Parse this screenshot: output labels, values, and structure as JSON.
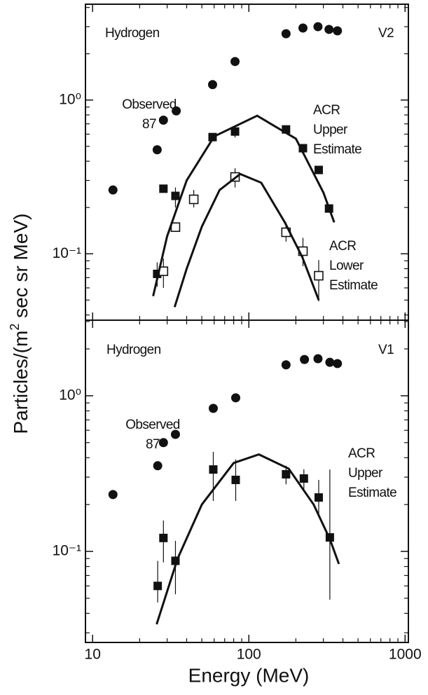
{
  "chart_data": [
    {
      "type": "scatter",
      "ylabel": [
        "Particles/(m",
        "2",
        " sec sr MeV)"
      ],
      "xscale": "log",
      "yscale": "log",
      "xlim": [
        9,
        1050
      ],
      "ylim": [
        0.037,
        4.2
      ],
      "xticks": [
        10,
        100,
        1000
      ],
      "xticks_minor": [
        20,
        30,
        40,
        50,
        60,
        70,
        80,
        90,
        200,
        300,
        400,
        500,
        600,
        700,
        800,
        900
      ],
      "yticks": [
        {
          "value": 0.1,
          "label": "10⁻¹"
        },
        {
          "value": 1,
          "label": "10⁰"
        }
      ],
      "yticks_minor": [
        0.04,
        0.05,
        0.06,
        0.07,
        0.08,
        0.09,
        0.2,
        0.3,
        0.4,
        0.5,
        0.6,
        0.7,
        0.8,
        0.9,
        2,
        3,
        4
      ],
      "annotations": [
        [
          "Hydrogen"
        ],
        [
          "V2"
        ],
        [
          "Observed",
          "87"
        ],
        [
          "ACR",
          "Upper",
          "Estimate"
        ],
        [
          "ACR",
          "Lower",
          "Estimate"
        ]
      ],
      "series": [
        {
          "marker": "circle",
          "color": "#111111",
          "x": [
            13.5,
            25.9,
            28.4,
            34.3,
            58.6,
            81.6,
            173,
            222,
            277,
            326,
            369
          ],
          "values": [
            0.26,
            0.475,
            0.74,
            0.85,
            1.26,
            1.78,
            2.7,
            2.94,
            3.0,
            2.88,
            2.82
          ]
        },
        {
          "marker": "square",
          "color": "#111111",
          "x": [
            25.9,
            28.4,
            33.9,
            58.6,
            81.6,
            173,
            222,
            280,
            326
          ],
          "values": [
            0.074,
            0.265,
            0.238,
            0.574,
            0.624,
            0.644,
            0.486,
            0.351,
            0.197
          ],
          "errors": [
            [
              0.061,
              0.088
            ],
            null,
            [
              0.2,
              0.27
            ],
            null,
            [
              0.57,
              0.68
            ],
            null,
            null,
            null,
            null
          ]
        },
        {
          "marker": "open-square",
          "color": "#111111",
          "x": [
            28.4,
            33.9,
            44.4,
            81.6,
            173,
            222,
            280
          ],
          "values": [
            0.077,
            0.149,
            0.226,
            0.316,
            0.138,
            0.104,
            0.072
          ],
          "errors": [
            [
              0.06,
              0.093
            ],
            null,
            [
              0.2,
              0.26
            ],
            [
              0.27,
              0.36
            ],
            [
              0.12,
              0.16
            ],
            [
              0.083,
              0.127
            ],
            [
              0.049,
              0.091
            ]
          ]
        },
        {
          "marker": "line",
          "color": "#111111",
          "x": [
            24.4,
            30,
            40,
            60,
            113,
            200,
            300,
            352
          ],
          "values": [
            0.053,
            0.13,
            0.3,
            0.58,
            0.79,
            0.56,
            0.25,
            0.16
          ]
        },
        {
          "marker": "line",
          "color": "#111111",
          "x": [
            33.5,
            40,
            50,
            65,
            88,
            120,
            170,
            220,
            280
          ],
          "values": [
            0.045,
            0.08,
            0.15,
            0.26,
            0.33,
            0.29,
            0.16,
            0.095,
            0.05
          ]
        }
      ]
    },
    {
      "type": "scatter",
      "xlabel": "Energy (MeV)",
      "xscale": "log",
      "yscale": "log",
      "xlim": [
        9,
        1050
      ],
      "ylim": [
        0.026,
        3.06
      ],
      "xticks": [
        10,
        100,
        1000
      ],
      "xticks_minor": [
        20,
        30,
        40,
        50,
        60,
        70,
        80,
        90,
        200,
        300,
        400,
        500,
        600,
        700,
        800,
        900
      ],
      "yticks": [
        {
          "value": 0.1,
          "label": "10⁻¹"
        },
        {
          "value": 1,
          "label": "10⁰"
        }
      ],
      "yticks_minor": [
        0.03,
        0.04,
        0.05,
        0.06,
        0.07,
        0.08,
        0.09,
        0.2,
        0.3,
        0.4,
        0.5,
        0.6,
        0.7,
        0.8,
        0.9,
        2,
        3
      ],
      "annotations": [
        [
          "Hydrogen"
        ],
        [
          "V1"
        ],
        [
          "Observed",
          "87"
        ],
        [
          "ACR",
          "Upper",
          "Estimate"
        ]
      ],
      "series": [
        {
          "marker": "circle",
          "color": "#111111",
          "x": [
            13.5,
            26.1,
            28.4,
            33.9,
            59.2,
            82.4,
            173,
            227,
            277,
            330,
            369
          ],
          "values": [
            0.232,
            0.355,
            0.5,
            0.565,
            0.83,
            0.97,
            1.58,
            1.71,
            1.73,
            1.64,
            1.61
          ]
        },
        {
          "marker": "square",
          "color": "#111111",
          "x": [
            26.1,
            28.4,
            33.9,
            59.2,
            82.4,
            173,
            225,
            280,
            330
          ],
          "values": [
            0.06,
            0.122,
            0.087,
            0.336,
            0.288,
            0.313,
            0.294,
            0.222,
            0.123
          ],
          "errors": [
            [
              0.047,
              0.087
            ],
            [
              0.085,
              0.158
            ],
            [
              0.053,
              0.117
            ],
            [
              0.211,
              0.436
            ],
            [
              0.211,
              0.39
            ],
            [
              0.27,
              0.355
            ],
            [
              0.247,
              0.337
            ],
            [
              0.171,
              0.288
            ],
            [
              0.049,
              0.336
            ]
          ]
        },
        {
          "marker": "line",
          "color": "#111111",
          "x": [
            25.7,
            35,
            50,
            80,
            116,
            180,
            260,
            330,
            377
          ],
          "values": [
            0.034,
            0.09,
            0.2,
            0.37,
            0.42,
            0.34,
            0.2,
            0.12,
            0.083
          ]
        }
      ]
    }
  ]
}
